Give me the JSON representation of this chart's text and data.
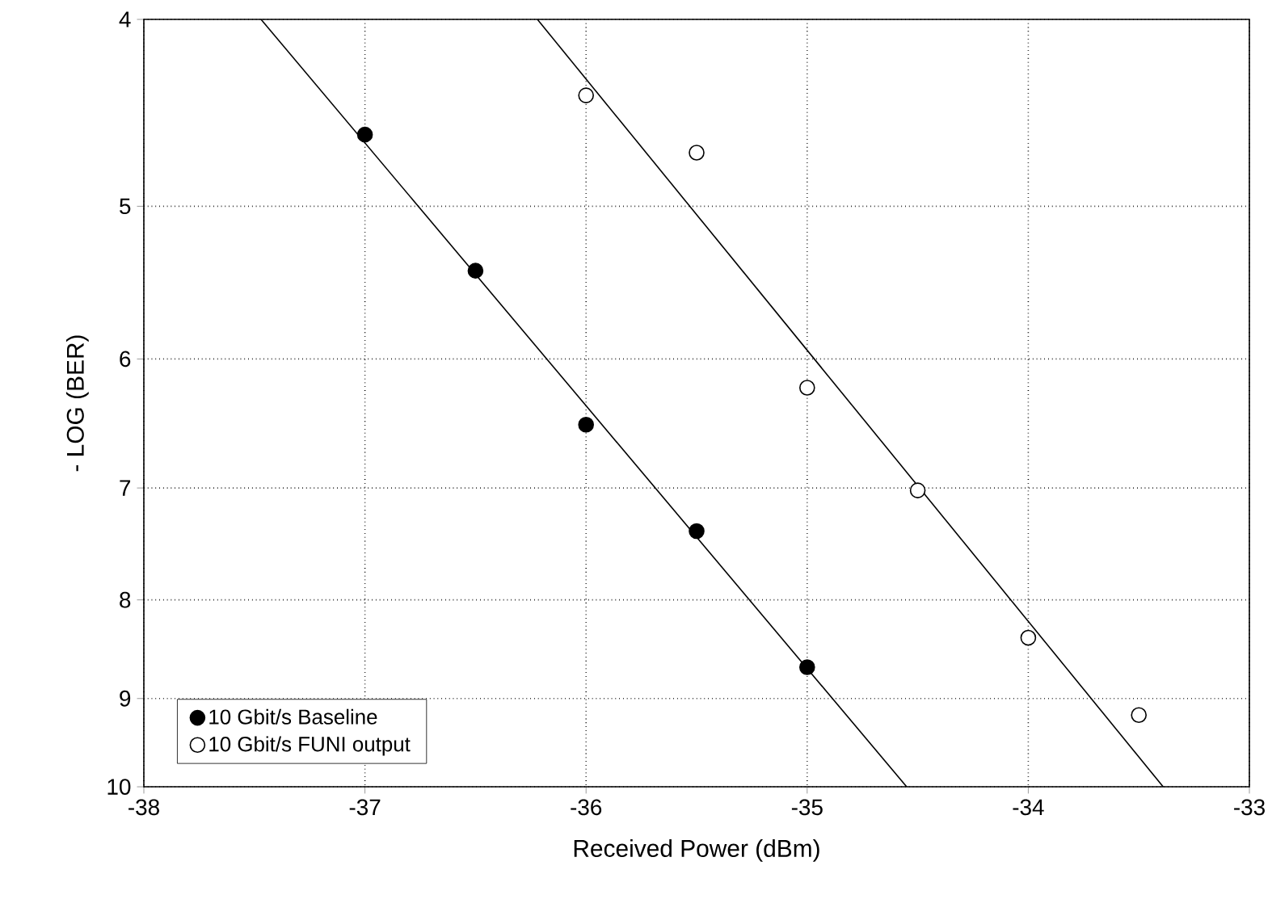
{
  "chart_data": {
    "type": "scatter",
    "xlabel": "Received Power (dBm)",
    "ylabel": "- LOG (BER)",
    "xlim": [
      -38,
      -33
    ],
    "ylim": [
      10,
      4
    ],
    "xticks": [
      -38,
      -37,
      -36,
      -35,
      -34,
      -33
    ],
    "yticks": [
      4,
      5,
      6,
      7,
      8,
      9,
      10
    ],
    "log": "y",
    "grid": true,
    "legend": "bottom left",
    "x": [
      -37,
      -36.5,
      -36,
      -35.5,
      -35
    ],
    "series": [
      {
        "name": "10 Gbit/s Baseline",
        "color": "#000000",
        "marker": "circle",
        "values": [
          4.59,
          5.4,
          6.49,
          7.37,
          8.67
        ]
      },
      {
        "name": "10 Gbit/s FUNI output",
        "color": "#ffffff",
        "marker": "circle",
        "x": [
          -36,
          -35.5,
          -35,
          -34.5,
          -34,
          -33.5
        ],
        "values": [
          4.38,
          4.69,
          6.21,
          7.02,
          8.37,
          9.18
        ]
      },
      {
        "type": "line",
        "color": "#000000",
        "marker": "none",
        "x": [
          -37.47,
          -34.55
        ],
        "values": [
          4,
          10
        ]
      },
      {
        "type": "line",
        "color": "#000000",
        "marker": "none",
        "x": [
          -36.22,
          -33.39
        ],
        "values": [
          4,
          10
        ]
      }
    ]
  }
}
